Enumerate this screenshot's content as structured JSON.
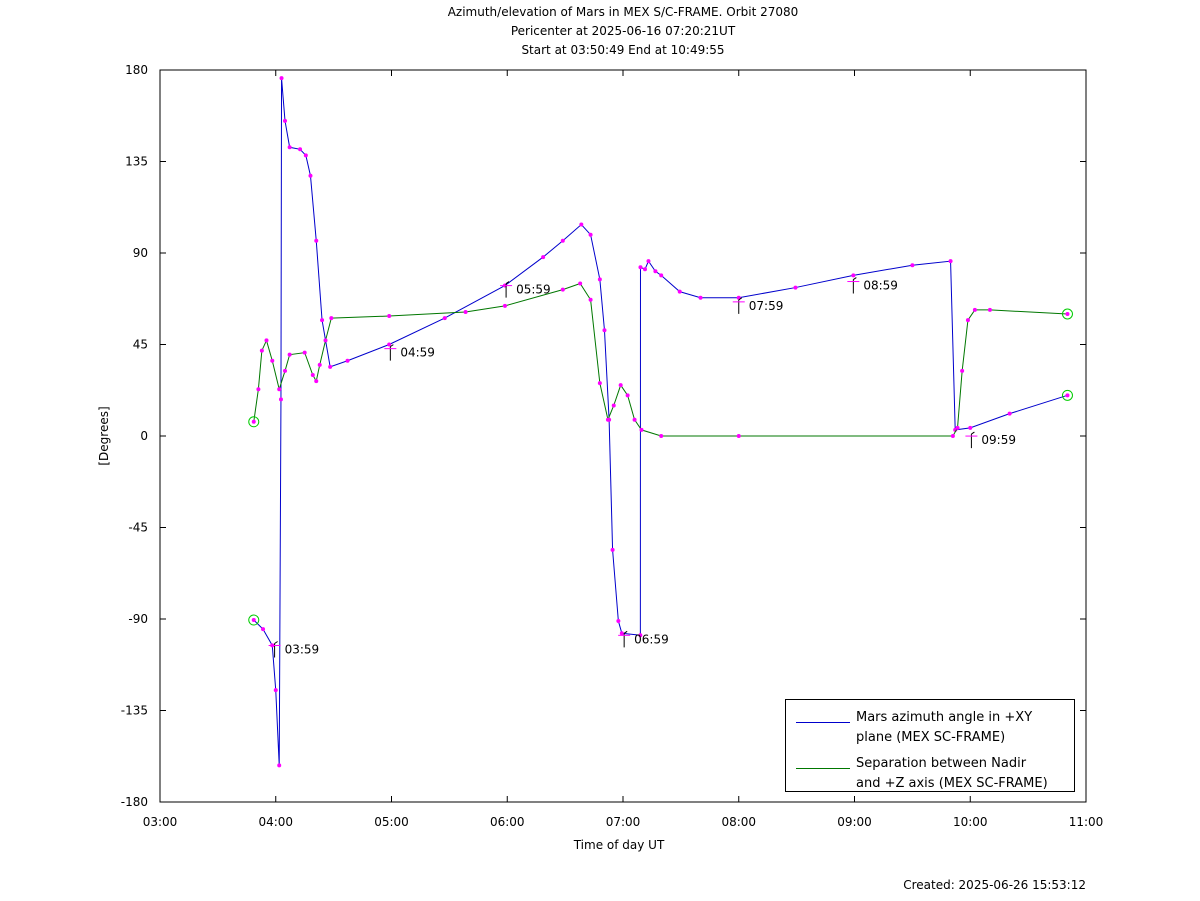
{
  "chart_data": {
    "type": "line",
    "title": "Azimuth/elevation of Mars in MEX S/C-FRAME.  Orbit 27080",
    "subtitle": [
      "Pericenter at 2025-06-16 07:20:21UT",
      "Start at 03:50:49 End at 10:49:55"
    ],
    "x_label": "Time of day UT",
    "y_label": "[Degrees]",
    "footnote": "Created: 2025-06-26 15:53:12",
    "xlim": [
      3,
      11
    ],
    "xticks": [
      {
        "value": 3,
        "label": "03:00"
      },
      {
        "value": 4,
        "label": "04:00"
      },
      {
        "value": 5,
        "label": "05:00"
      },
      {
        "value": 6,
        "label": "06:00"
      },
      {
        "value": 7,
        "label": "07:00"
      },
      {
        "value": 8,
        "label": "08:00"
      },
      {
        "value": 9,
        "label": "09:00"
      },
      {
        "value": 10,
        "label": "10:00"
      },
      {
        "value": 11,
        "label": "11:00"
      }
    ],
    "ylim": [
      -180,
      180
    ],
    "yticks": [
      -180,
      -135,
      -90,
      -45,
      0,
      45,
      90,
      135,
      180
    ],
    "marker_color": "#ff00ff",
    "endpoint_color": "#00cc00",
    "series": [
      {
        "name": "Mars azimuth angle in +XY\nplane (MEX SC-FRAME)",
        "color": "#0000cc",
        "x": [
          3.81,
          3.89,
          3.97,
          4.0,
          4.03,
          4.045,
          4.05,
          4.08,
          4.12,
          4.21,
          4.26,
          4.3,
          4.35,
          4.4,
          4.47,
          4.62,
          4.98,
          5.46,
          5.98,
          6.31,
          6.48,
          6.64,
          6.72,
          6.8,
          6.84,
          6.88,
          6.91,
          6.96,
          6.99,
          7.15,
          7.151,
          7.19,
          7.22,
          7.28,
          7.33,
          7.49,
          7.67,
          8.0,
          8.49,
          8.99,
          9.5,
          9.83,
          9.87,
          10.0,
          10.34,
          10.84
        ],
        "values": [
          -90.5,
          -95,
          -103,
          -125,
          -162,
          18,
          176,
          155,
          142,
          141,
          138,
          128,
          96,
          57,
          34,
          37,
          45,
          58,
          74,
          88,
          96,
          104,
          99,
          77,
          52,
          8,
          -56,
          -91,
          -97,
          -98,
          83,
          82,
          86,
          81,
          79,
          71,
          68,
          68,
          73,
          79,
          84,
          86,
          3,
          4,
          11,
          20
        ]
      },
      {
        "name": "Separation between Nadir\nand +Z axis (MEX SC-FRAME)",
        "color": "#007700",
        "x": [
          3.81,
          3.85,
          3.88,
          3.92,
          3.97,
          4.03,
          4.08,
          4.12,
          4.25,
          4.32,
          4.35,
          4.38,
          4.43,
          4.48,
          4.98,
          5.64,
          5.98,
          6.48,
          6.63,
          6.72,
          6.8,
          6.87,
          6.92,
          6.98,
          7.04,
          7.1,
          7.16,
          7.33,
          8.0,
          9.85,
          9.89,
          9.93,
          9.98,
          10.04,
          10.17,
          10.84
        ],
        "values": [
          7,
          23,
          42,
          47,
          37,
          23,
          32,
          40,
          41,
          30,
          27,
          35,
          47,
          58,
          59,
          61,
          64,
          72,
          75,
          67,
          26,
          8,
          15,
          25,
          20,
          8,
          3,
          0,
          0,
          0,
          4,
          32,
          57,
          62,
          62,
          60
        ]
      }
    ],
    "annotations": [
      {
        "label": "03:59",
        "x": 3.99,
        "y": -105
      },
      {
        "label": "04:59",
        "x": 4.99,
        "y": 41
      },
      {
        "label": "05:59",
        "x": 5.99,
        "y": 72
      },
      {
        "label": "06:59",
        "x": 7.01,
        "y": -100
      },
      {
        "label": "07:59",
        "x": 8.0,
        "y": 64
      },
      {
        "label": "08:59",
        "x": 8.99,
        "y": 74
      },
      {
        "label": "09:59",
        "x": 10.01,
        "y": -2
      }
    ]
  }
}
